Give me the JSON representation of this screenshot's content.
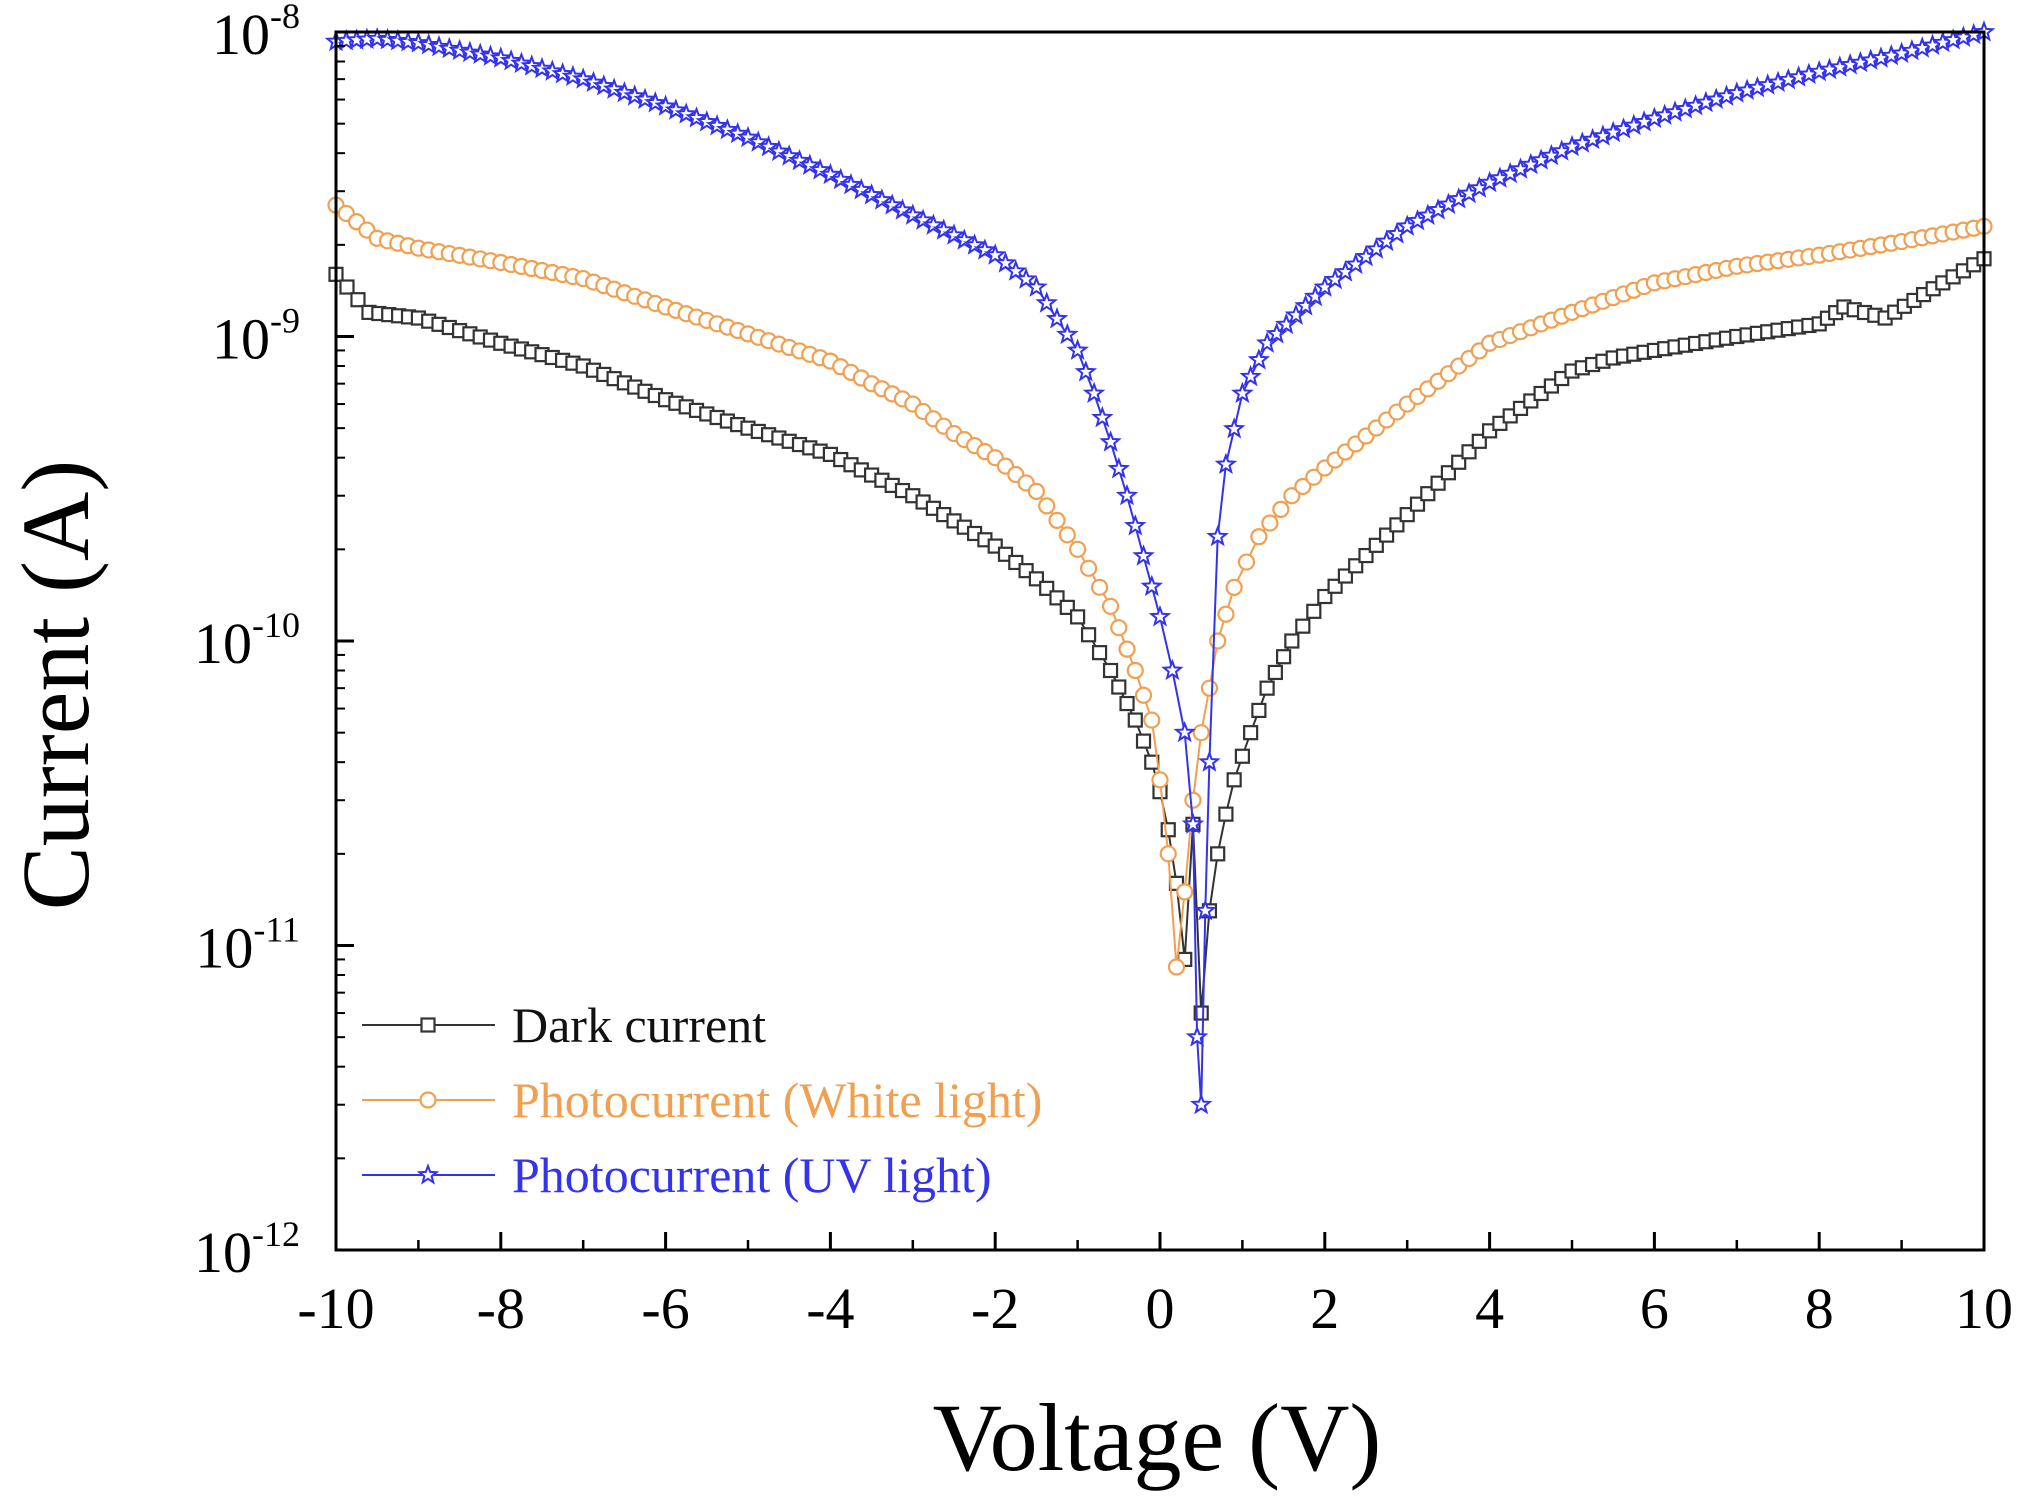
{
  "chart_data": {
    "type": "scatter",
    "title": "",
    "xlabel": "Voltage (V)",
    "ylabel": "Current (A)",
    "xlim": [
      -10,
      10
    ],
    "ylim": [
      1e-12,
      1e-08
    ],
    "yscale": "log",
    "grid": false,
    "legend_position": "bottom-left",
    "xticks": [
      {
        "value": -10,
        "label": "-10"
      },
      {
        "value": -8,
        "label": "-8"
      },
      {
        "value": -6,
        "label": "-6"
      },
      {
        "value": -4,
        "label": "-4"
      },
      {
        "value": -2,
        "label": "-2"
      },
      {
        "value": 0,
        "label": "0"
      },
      {
        "value": 2,
        "label": "2"
      },
      {
        "value": 4,
        "label": "4"
      },
      {
        "value": 6,
        "label": "6"
      },
      {
        "value": 8,
        "label": "8"
      },
      {
        "value": 10,
        "label": "10"
      }
    ],
    "yticks": [
      {
        "value": 1e-12,
        "base": "10",
        "exp": "-12"
      },
      {
        "value": 1e-11,
        "base": "10",
        "exp": "-11"
      },
      {
        "value": 1e-10,
        "base": "10",
        "exp": "-10"
      },
      {
        "value": 1e-09,
        "base": "10",
        "exp": "-9"
      },
      {
        "value": 1e-08,
        "base": "10",
        "exp": "-8"
      }
    ],
    "series": [
      {
        "name": "Dark current",
        "color": "#333333",
        "marker": "square",
        "points": [
          [
            -10,
            1.6e-09
          ],
          [
            -9.6,
            1.2e-09
          ],
          [
            -9,
            1.15e-09
          ],
          [
            -8,
            9.5e-10
          ],
          [
            -7,
            8e-10
          ],
          [
            -6,
            6.2e-10
          ],
          [
            -5,
            5e-10
          ],
          [
            -4,
            4.1e-10
          ],
          [
            -3,
            3e-10
          ],
          [
            -2,
            2.05e-10
          ],
          [
            -1.5,
            1.6e-10
          ],
          [
            -1,
            1.2e-10
          ],
          [
            -0.6,
            8e-11
          ],
          [
            -0.3,
            5.5e-11
          ],
          [
            -0.1,
            4e-11
          ],
          [
            0,
            3.2e-11
          ],
          [
            0.1,
            2.4e-11
          ],
          [
            0.2,
            1.6e-11
          ],
          [
            0.3,
            9e-12
          ],
          [
            0.4,
            2.5e-11
          ],
          [
            0.5,
            6e-12
          ],
          [
            0.6,
            1.3e-11
          ],
          [
            0.7,
            2e-11
          ],
          [
            0.8,
            2.7e-11
          ],
          [
            0.9,
            3.5e-11
          ],
          [
            1.1,
            5e-11
          ],
          [
            1.3,
            7e-11
          ],
          [
            1.6,
            1e-10
          ],
          [
            2,
            1.4e-10
          ],
          [
            3,
            2.6e-10
          ],
          [
            4,
            4.9e-10
          ],
          [
            5,
            7.7e-10
          ],
          [
            5.5,
            8.5e-10
          ],
          [
            6,
            9e-10
          ],
          [
            7,
            1e-09
          ],
          [
            8,
            1.1e-09
          ],
          [
            8.3,
            1.25e-09
          ],
          [
            8.8,
            1.15e-09
          ],
          [
            9.5,
            1.5e-09
          ],
          [
            10,
            1.8e-09
          ]
        ]
      },
      {
        "name": "Photocurrent (White light)",
        "color": "#F0A050",
        "marker": "circle",
        "points": [
          [
            -10,
            2.7e-09
          ],
          [
            -9.5,
            2.1e-09
          ],
          [
            -9,
            1.95e-09
          ],
          [
            -8,
            1.75e-09
          ],
          [
            -7,
            1.55e-09
          ],
          [
            -6,
            1.25e-09
          ],
          [
            -5,
            1.02e-09
          ],
          [
            -4,
            8.3e-10
          ],
          [
            -3.5,
            7e-10
          ],
          [
            -3,
            6e-10
          ],
          [
            -2.5,
            4.8e-10
          ],
          [
            -2,
            4e-10
          ],
          [
            -1.5,
            3.1e-10
          ],
          [
            -1,
            2e-10
          ],
          [
            -0.6,
            1.3e-10
          ],
          [
            -0.3,
            8e-11
          ],
          [
            -0.1,
            5.5e-11
          ],
          [
            0,
            3.5e-11
          ],
          [
            0.1,
            2e-11
          ],
          [
            0.2,
            8.5e-12
          ],
          [
            0.3,
            1.5e-11
          ],
          [
            0.4,
            3e-11
          ],
          [
            0.5,
            5e-11
          ],
          [
            0.6,
            7e-11
          ],
          [
            0.7,
            1e-10
          ],
          [
            0.9,
            1.5e-10
          ],
          [
            1.2,
            2.2e-10
          ],
          [
            1.6,
            3e-10
          ],
          [
            2,
            3.7e-10
          ],
          [
            3,
            6e-10
          ],
          [
            4,
            9.5e-10
          ],
          [
            5,
            1.2e-09
          ],
          [
            6,
            1.5e-09
          ],
          [
            7,
            1.7e-09
          ],
          [
            8,
            1.85e-09
          ],
          [
            9,
            2.05e-09
          ],
          [
            10,
            2.3e-09
          ]
        ]
      },
      {
        "name": "Photocurrent (UV light)",
        "color": "#3333EE",
        "marker": "star",
        "points": [
          [
            -10,
            9.3e-09
          ],
          [
            -9.5,
            9.5e-09
          ],
          [
            -9,
            9.2e-09
          ],
          [
            -8,
            8.2e-09
          ],
          [
            -7,
            7e-09
          ],
          [
            -6,
            5.7e-09
          ],
          [
            -5,
            4.5e-09
          ],
          [
            -4,
            3.4e-09
          ],
          [
            -3,
            2.5e-09
          ],
          [
            -2,
            1.85e-09
          ],
          [
            -1.5,
            1.45e-09
          ],
          [
            -1,
            9e-10
          ],
          [
            -0.8,
            6.5e-10
          ],
          [
            -0.6,
            4.5e-10
          ],
          [
            -0.4,
            3e-10
          ],
          [
            -0.2,
            1.9e-10
          ],
          [
            0,
            1.2e-10
          ],
          [
            0.15,
            8e-11
          ],
          [
            0.3,
            5e-11
          ],
          [
            0.4,
            2.5e-11
          ],
          [
            0.45,
            5e-12
          ],
          [
            0.5,
            3e-12
          ],
          [
            0.55,
            1.3e-11
          ],
          [
            0.6,
            4e-11
          ],
          [
            0.7,
            2.2e-10
          ],
          [
            0.8,
            3.8e-10
          ],
          [
            1,
            6.5e-10
          ],
          [
            1.3,
            9.5e-10
          ],
          [
            2,
            1.45e-09
          ],
          [
            3,
            2.3e-09
          ],
          [
            4,
            3.2e-09
          ],
          [
            5,
            4.2e-09
          ],
          [
            6,
            5.2e-09
          ],
          [
            7,
            6.3e-09
          ],
          [
            8,
            7.4e-09
          ],
          [
            9,
            8.5e-09
          ],
          [
            10,
            1e-08
          ]
        ]
      }
    ]
  }
}
